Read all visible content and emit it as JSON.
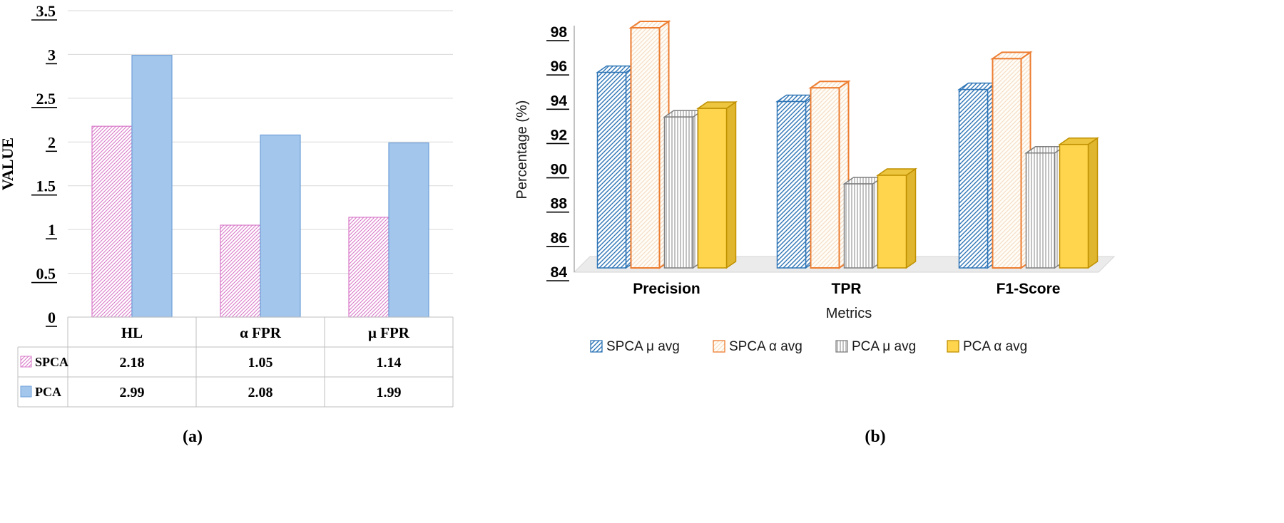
{
  "figure": {
    "caption_a": "(a)",
    "caption_b": "(b)"
  },
  "chart_data": [
    {
      "panel": "a",
      "type": "bar",
      "title": "",
      "ylabel": "VALUE",
      "xlabel": "",
      "ylim": [
        0,
        3.5
      ],
      "yticks": [
        0,
        0.5,
        1,
        1.5,
        2,
        2.5,
        3,
        3.5
      ],
      "grid": true,
      "categories": [
        "HL",
        "α FPR",
        "μ FPR"
      ],
      "series": [
        {
          "name": "SPCA",
          "style": "pink-hatch",
          "values": [
            2.18,
            1.05,
            1.14
          ]
        },
        {
          "name": "PCA",
          "style": "blue-solid",
          "values": [
            2.99,
            2.08,
            1.99
          ]
        }
      ],
      "data_table_shown": true,
      "legend_position": "data-table-left"
    },
    {
      "panel": "b",
      "type": "bar",
      "effect": "3d",
      "title": "",
      "ylabel": "Percentage (%)",
      "xlabel": "Metrics",
      "ylim": [
        84,
        98
      ],
      "yticks": [
        84,
        86,
        88,
        90,
        92,
        94,
        96,
        98
      ],
      "grid": false,
      "categories": [
        "Precision",
        "TPR",
        "F1-Score"
      ],
      "series": [
        {
          "name": "SPCA μ avg",
          "style": "blue-hatch",
          "values": [
            95.4,
            93.7,
            94.4
          ]
        },
        {
          "name": "SPCA α avg",
          "style": "orange-outline",
          "values": [
            98,
            94.5,
            96.2
          ]
        },
        {
          "name": "PCA μ avg",
          "style": "gray-vlines",
          "values": [
            92.8,
            88.9,
            90.7
          ]
        },
        {
          "name": "PCA α avg",
          "style": "yellow-solid",
          "values": [
            93.3,
            89.4,
            91.2
          ]
        }
      ],
      "legend_position": "bottom"
    }
  ],
  "colors": {
    "spca_pink": "#d878c8",
    "pca_blue_fill": "#a3c7ec",
    "pca_blue_border": "#6f9fd8",
    "blue_hatch": "#2e75b6",
    "orange": "#ed7d31",
    "orange_hatch_light": "#f6ddc5",
    "gray_hatch": "#8f8f8f",
    "gray_border": "#7f7f7f",
    "yellow_fill": "#ffd54d",
    "yellow_top": "#edc53f",
    "yellow_side": "#e0b62e",
    "yellow_border": "#bf9000",
    "grid": "#d9d9d9",
    "table_border": "#bfbfbf",
    "floor_fill": "#ebebeb",
    "floor_border": "#d6d6d6",
    "axis": "#9a9a9a"
  }
}
